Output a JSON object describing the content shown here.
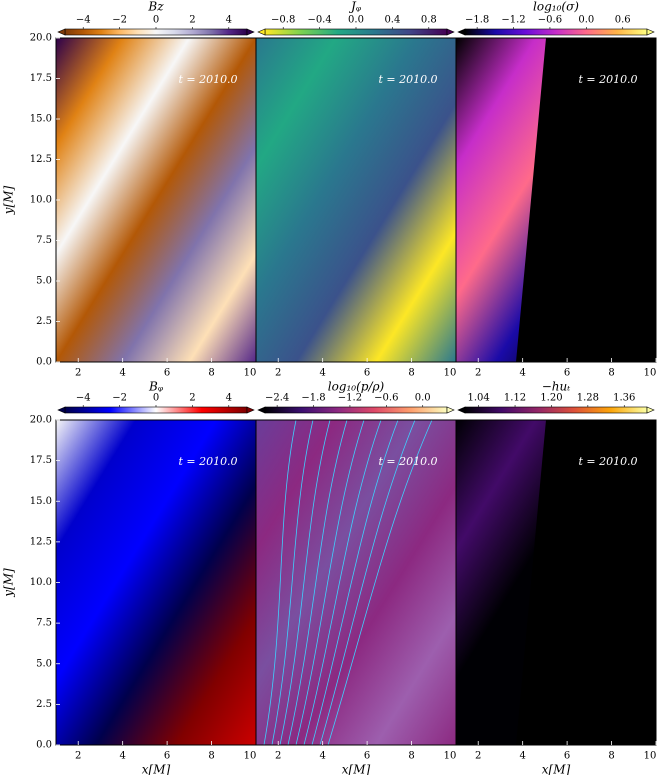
{
  "chart_data": [
    {
      "type": "heatmap",
      "title": "Bz",
      "clim": [
        -5,
        5
      ],
      "cticks": [
        {
          "value": -4,
          "label": "−4"
        },
        {
          "value": -2,
          "label": "−2"
        },
        0,
        2,
        4
      ],
      "colormap": [
        "#7f3b08",
        "#b35806",
        "#e08214",
        "#fdb863",
        "#fee0b6",
        "#f7f7f7",
        "#d8daeb",
        "#b2abd2",
        "#8073ac",
        "#542788",
        "#2d004b"
      ],
      "annotation": "t = 2010.0",
      "xlim": [
        1,
        10
      ],
      "xticks": [
        2,
        4,
        6,
        8,
        10
      ],
      "ylim": [
        0,
        20
      ],
      "yticks": [
        {
          "value": 0,
          "label": "0.0"
        },
        2.5,
        {
          "value": 5,
          "label": "5.0"
        },
        7.5,
        {
          "value": 10,
          "label": "10.0"
        },
        12.5,
        {
          "value": 15,
          "label": "15.0"
        },
        17.5,
        {
          "value": 20,
          "label": "20.0"
        }
      ],
      "ylabel": "y[M]"
    },
    {
      "type": "heatmap",
      "title": "Jᵩ",
      "clim": [
        -1,
        1
      ],
      "cticks": [
        {
          "value": -0.8,
          "label": "−0.8"
        },
        {
          "value": -0.4,
          "label": "−0.4"
        },
        {
          "value": 0,
          "label": "0.0"
        },
        0.4,
        0.8
      ],
      "colormap": [
        "#fde725",
        "#7ad151",
        "#22a884",
        "#2a788e",
        "#414487",
        "#440154"
      ],
      "annotation": "t = 2010.0",
      "xlim": [
        1,
        10
      ],
      "xticks": [
        2,
        4,
        6,
        8,
        10
      ],
      "ylim": [
        0,
        20
      ]
    },
    {
      "type": "heatmap",
      "title": "log₁₀(σ)",
      "clim": [
        -2,
        1
      ],
      "cticks": [
        {
          "value": -1.8,
          "label": "−1.8"
        },
        {
          "value": -1.2,
          "label": "−1.2"
        },
        {
          "value": -0.6,
          "label": "−0.6"
        },
        {
          "value": 0,
          "label": "0.0"
        },
        0.6
      ],
      "colormap": [
        "#000000",
        "#1a0aa8",
        "#6a0dd9",
        "#c62dc9",
        "#ff6a8a",
        "#ffb347",
        "#ffff80"
      ],
      "annotation": "t = 2010.0",
      "xlim": [
        1,
        10
      ],
      "xticks": [
        2,
        4,
        6,
        8,
        10
      ],
      "ylim": [
        0,
        20
      ]
    },
    {
      "type": "heatmap",
      "title": "Bᵩ",
      "clim": [
        -5,
        5
      ],
      "cticks": [
        {
          "value": -4,
          "label": "−4"
        },
        {
          "value": -2,
          "label": "−2"
        },
        0,
        2,
        4
      ],
      "colormap": [
        "#00004c",
        "#0000ff",
        "#ffffff",
        "#ff0000",
        "#800000"
      ],
      "annotation": "t = 2010.0",
      "xlim": [
        1,
        10
      ],
      "xticks": [
        2,
        4,
        6,
        8,
        10
      ],
      "ylim": [
        0,
        20
      ],
      "yticks": [
        {
          "value": 0,
          "label": "0.0"
        },
        2.5,
        {
          "value": 5,
          "label": "5.0"
        },
        7.5,
        {
          "value": 10,
          "label": "10.0"
        },
        12.5,
        {
          "value": 15,
          "label": "15.0"
        },
        17.5,
        {
          "value": 20,
          "label": "20.0"
        }
      ],
      "ylabel": "y[M]",
      "xlabel": "x[M]"
    },
    {
      "type": "heatmap",
      "title": "log₁₀(p/ρ)",
      "clim": [
        -2.6,
        0.4
      ],
      "cticks": [
        {
          "value": -2.4,
          "label": "−2.4"
        },
        {
          "value": -1.8,
          "label": "−1.8"
        },
        {
          "value": -1.2,
          "label": "−1.2"
        },
        {
          "value": -0.6,
          "label": "−0.6"
        },
        {
          "value": 0,
          "label": "0.0"
        }
      ],
      "colormap": [
        "#000004",
        "#3b0f70",
        "#8c2981",
        "#de4968",
        "#fe9f6d",
        "#fcfdbf"
      ],
      "annotation": "t = 2010.0",
      "xlim": [
        1,
        10
      ],
      "xticks": [
        2,
        4,
        6,
        8,
        10
      ],
      "ylim": [
        0,
        20
      ],
      "xlabel": "x[M]"
    },
    {
      "type": "heatmap",
      "title": "−huₜ",
      "clim": [
        1.01,
        1.41
      ],
      "cticks": [
        1.04,
        1.12,
        {
          "value": 1.2,
          "label": "1.20"
        },
        1.28,
        1.36
      ],
      "colormap": [
        "#000004",
        "#420a68",
        "#932667",
        "#dd513a",
        "#fca50a",
        "#fcffa4"
      ],
      "annotation": "t = 2010.0",
      "xlim": [
        1,
        10
      ],
      "xticks": [
        2,
        4,
        6,
        8,
        10
      ],
      "ylim": [
        0,
        20
      ],
      "xlabel": "x[M]"
    }
  ]
}
